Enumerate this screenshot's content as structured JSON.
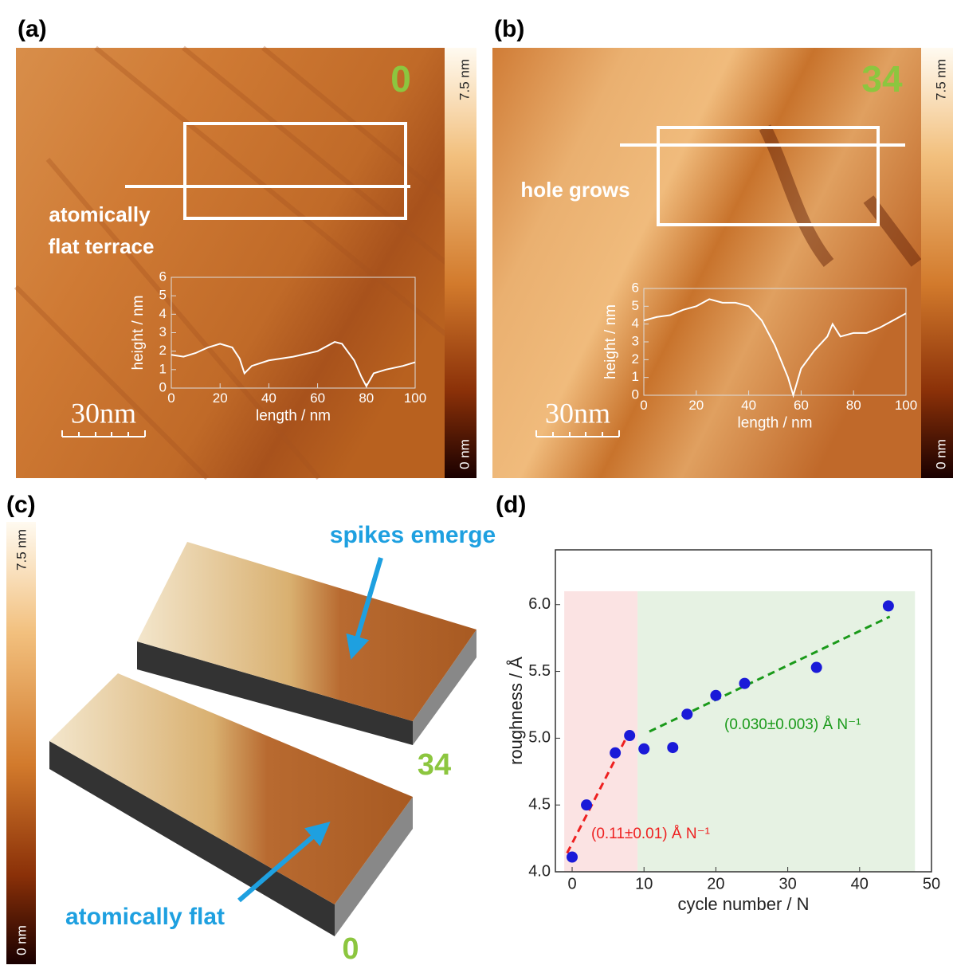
{
  "figure": {
    "panel_labels": [
      "(a)",
      "(b)",
      "(c)",
      "(d)"
    ],
    "colorbar": {
      "max": "7.5 nm",
      "min": "0 nm"
    },
    "scale_bar": "30nm",
    "cycle_labels": {
      "a": "0",
      "b": "34",
      "c_top": "34",
      "c_bottom": "0"
    },
    "annotations": {
      "a_line1": "atomically",
      "a_line2": "flat terrace",
      "b": "hole grows",
      "c_spikes": "spikes emerge",
      "c_flat": "atomically flat"
    }
  },
  "chart_data": [
    {
      "type": "line",
      "xlabel": "length / nm",
      "ylabel": "height / nm",
      "color": "#ffffff",
      "x": [
        0,
        5,
        10,
        15,
        20,
        25,
        28,
        30,
        33,
        40,
        50,
        60,
        67,
        70,
        75,
        78,
        80,
        83,
        88,
        95,
        100
      ],
      "values": [
        1.8,
        1.7,
        1.9,
        2.2,
        2.4,
        2.2,
        1.6,
        0.8,
        1.2,
        1.5,
        1.7,
        2.0,
        2.5,
        2.4,
        1.5,
        0.6,
        0.1,
        0.8,
        1.0,
        1.2,
        1.4
      ],
      "xlim": [
        0,
        100
      ],
      "ylim": [
        0,
        6
      ],
      "xticks": [
        0,
        20,
        40,
        60,
        80,
        100
      ],
      "yticks": [
        0,
        1,
        2,
        3,
        4,
        5,
        6
      ]
    },
    {
      "type": "line",
      "xlabel": "length / nm",
      "ylabel": "height / nm",
      "color": "#ffffff",
      "x": [
        0,
        5,
        10,
        15,
        20,
        25,
        30,
        35,
        40,
        45,
        50,
        55,
        57,
        60,
        65,
        70,
        72,
        75,
        80,
        85,
        90,
        95,
        100
      ],
      "values": [
        4.2,
        4.4,
        4.5,
        4.8,
        5.0,
        5.4,
        5.2,
        5.2,
        5.0,
        4.2,
        2.8,
        1.0,
        0.0,
        1.5,
        2.5,
        3.3,
        4.0,
        3.3,
        3.5,
        3.5,
        3.8,
        4.2,
        4.6
      ],
      "xlim": [
        0,
        100
      ],
      "ylim": [
        0,
        6
      ],
      "xticks": [
        0,
        20,
        40,
        60,
        80,
        100
      ],
      "yticks": [
        0,
        1,
        2,
        3,
        4,
        5,
        6
      ]
    },
    {
      "type": "scatter",
      "xlabel": "cycle number / N",
      "ylabel": "roughness / Å",
      "series": [
        {
          "color": "#1a1ad8",
          "x": [
            0,
            2,
            6,
            8,
            10,
            14,
            16,
            20,
            24,
            34,
            44
          ],
          "values": [
            4.11,
            4.5,
            4.89,
            5.02,
            4.92,
            4.93,
            5.18,
            5.32,
            5.41,
            5.53,
            5.99
          ]
        }
      ],
      "regions": [
        {
          "color": "#fbe3e3",
          "x": [
            -1.1,
            9.1
          ],
          "y": [
            4.0,
            6.1
          ]
        },
        {
          "color": "#e6f2e3",
          "x": [
            9.1,
            47.7
          ],
          "y": [
            4.0,
            6.1
          ]
        }
      ],
      "fits": [
        {
          "color": "#ee2020",
          "x": [
            -0.7,
            7.5
          ],
          "values": [
            4.14,
            5.0
          ],
          "label": "(0.11±0.01) Å N⁻¹"
        },
        {
          "color": "#1a9a1a",
          "x": [
            10.75,
            44.2
          ],
          "values": [
            5.05,
            5.91
          ],
          "label": "(0.030±0.003) Å N⁻¹"
        }
      ],
      "xlim": [
        -2.33,
        50
      ],
      "ylim": [
        4.0,
        6.41
      ],
      "xticks": [
        0,
        10,
        20,
        30,
        40,
        50
      ],
      "yticks": [
        {
          "value": 4.0,
          "label": "4.0"
        },
        {
          "value": 4.5,
          "label": "4.5"
        },
        {
          "value": 5.0,
          "label": "5.0"
        },
        {
          "value": 5.5,
          "label": "5.5"
        },
        {
          "value": 6.0,
          "label": "6.0"
        }
      ]
    }
  ]
}
